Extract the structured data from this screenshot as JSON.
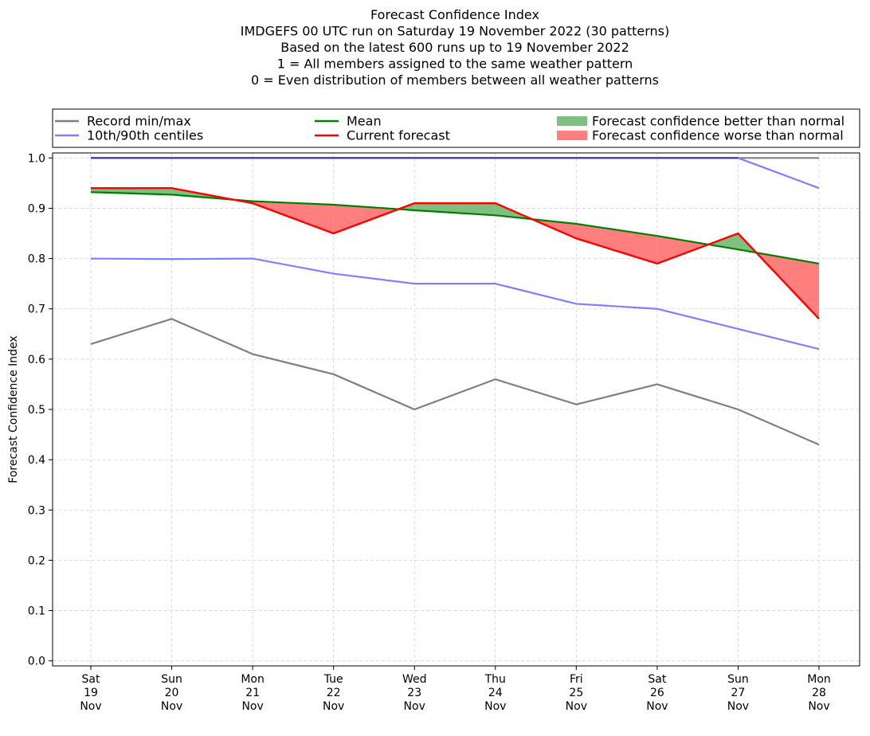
{
  "chart_data": {
    "type": "line",
    "title_lines": [
      "Forecast Confidence Index",
      "IMDGEFS 00 UTC run on Saturday 19 November 2022 (30 patterns)",
      "Based on the latest 600 runs up to 19 November 2022",
      "1 = All members assigned to the same weather pattern",
      "0 = Even distribution of members between all weather patterns"
    ],
    "ylabel": "Forecast Confidence Index",
    "xlabel": "",
    "ylim": [
      -0.01,
      1.01
    ],
    "yticks": [
      "0.0",
      "0.1",
      "0.2",
      "0.3",
      "0.4",
      "0.5",
      "0.6",
      "0.7",
      "0.8",
      "0.9",
      "1.0"
    ],
    "ytick_values": [
      0.0,
      0.1,
      0.2,
      0.3,
      0.4,
      0.5,
      0.6,
      0.7,
      0.8,
      0.9,
      1.0
    ],
    "categories": [
      [
        "Sat",
        "19",
        "Nov"
      ],
      [
        "Sun",
        "20",
        "Nov"
      ],
      [
        "Mon",
        "21",
        "Nov"
      ],
      [
        "Tue",
        "22",
        "Nov"
      ],
      [
        "Wed",
        "23",
        "Nov"
      ],
      [
        "Thu",
        "24",
        "Nov"
      ],
      [
        "Fri",
        "25",
        "Nov"
      ],
      [
        "Sat",
        "26",
        "Nov"
      ],
      [
        "Sun",
        "27",
        "Nov"
      ],
      [
        "Mon",
        "28",
        "Nov"
      ]
    ],
    "grid": true,
    "legend_position": "top",
    "legend": [
      {
        "label": "Record min/max",
        "kind": "line",
        "color": "#808080"
      },
      {
        "label": "10th/90th centiles",
        "kind": "line",
        "color": "#7f7fff"
      },
      {
        "label": "Mean",
        "kind": "line",
        "color": "#008000"
      },
      {
        "label": "Current forecast",
        "kind": "line",
        "color": "#ff0000"
      },
      {
        "label": "Forecast confidence better than normal",
        "kind": "patch",
        "color": "#7fbf7f"
      },
      {
        "label": "Forecast confidence worse than normal",
        "kind": "patch",
        "color": "#ff7f7f"
      }
    ],
    "series": {
      "record_max": {
        "color": "#808080",
        "values": [
          1.0,
          1.0,
          1.0,
          1.0,
          1.0,
          1.0,
          1.0,
          1.0,
          1.0,
          1.0
        ]
      },
      "record_min": {
        "color": "#808080",
        "values": [
          0.63,
          0.68,
          0.61,
          0.57,
          0.5,
          0.56,
          0.51,
          0.55,
          0.5,
          0.43
        ]
      },
      "p90": {
        "color": "#7f7fff",
        "values": [
          1.0,
          1.0,
          1.0,
          1.0,
          1.0,
          1.0,
          1.0,
          1.0,
          1.0,
          0.94
        ]
      },
      "p10": {
        "color": "#7f7fff",
        "values": [
          0.8,
          0.799,
          0.8,
          0.77,
          0.75,
          0.75,
          0.71,
          0.7,
          0.66,
          0.62
        ]
      },
      "mean": {
        "color": "#008000",
        "values": [
          0.932,
          0.927,
          0.914,
          0.907,
          0.896,
          0.886,
          0.869,
          0.845,
          0.818,
          0.79
        ]
      },
      "current": {
        "color": "#ff0000",
        "values": [
          0.94,
          0.94,
          0.91,
          0.85,
          0.91,
          0.91,
          0.84,
          0.79,
          0.85,
          0.68
        ]
      }
    },
    "fill_better_color": "#7fbf7f",
    "fill_worse_color": "#ff7f7f"
  }
}
